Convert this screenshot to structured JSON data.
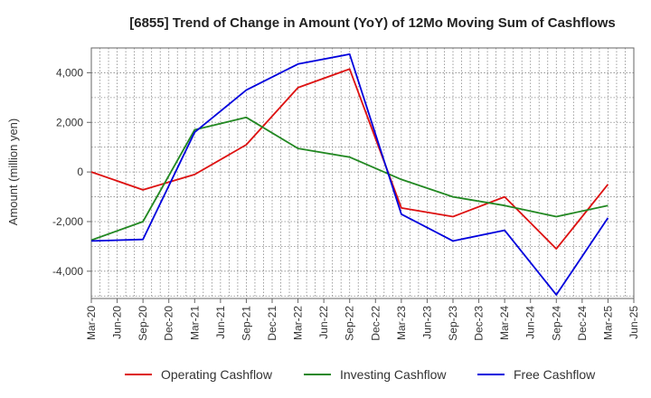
{
  "chart_data": {
    "type": "line",
    "title": "[6855]  Trend of Change in Amount (YoY) of 12Mo Moving Sum of Cashflows",
    "ylabel": "Amount (million yen)",
    "xlabel": "",
    "ylim": [
      -5100,
      5000
    ],
    "yticks": [
      4000,
      2000,
      0,
      -2000,
      -4000
    ],
    "ytick_labels": [
      "4,000",
      "2,000",
      "0",
      "-2,000",
      "-4,000"
    ],
    "categories": [
      "Mar-20",
      "Jun-20",
      "Sep-20",
      "Dec-20",
      "Mar-21",
      "Jun-21",
      "Sep-21",
      "Dec-21",
      "Mar-22",
      "Jun-22",
      "Sep-22",
      "Dec-22",
      "Mar-23",
      "Jun-23",
      "Sep-23",
      "Dec-23",
      "Mar-24",
      "Jun-24",
      "Sep-24",
      "Dec-24",
      "Mar-25",
      "Jun-25"
    ],
    "series": [
      {
        "name": "Operating Cashflow",
        "color": "#dd1111",
        "points": [
          [
            0,
            0
          ],
          [
            2,
            -720
          ],
          [
            4,
            -100
          ],
          [
            6,
            1100
          ],
          [
            8,
            3400
          ],
          [
            10,
            4150
          ],
          [
            12,
            -1450
          ],
          [
            14,
            -1800
          ],
          [
            16,
            -1000
          ],
          [
            18,
            -3100
          ],
          [
            20,
            -500
          ]
        ]
      },
      {
        "name": "Investing Cashflow",
        "color": "#228822",
        "points": [
          [
            0,
            -2750
          ],
          [
            2,
            -2000
          ],
          [
            4,
            1700
          ],
          [
            6,
            2200
          ],
          [
            8,
            950
          ],
          [
            10,
            600
          ],
          [
            12,
            -300
          ],
          [
            14,
            -1000
          ],
          [
            16,
            -1350
          ],
          [
            18,
            -1800
          ],
          [
            20,
            -1350
          ]
        ]
      },
      {
        "name": "Free Cashflow",
        "color": "#0000dd",
        "points": [
          [
            0,
            -2780
          ],
          [
            2,
            -2720
          ],
          [
            4,
            1600
          ],
          [
            6,
            3300
          ],
          [
            8,
            4350
          ],
          [
            10,
            4750
          ],
          [
            12,
            -1700
          ],
          [
            14,
            -2780
          ],
          [
            16,
            -2350
          ],
          [
            18,
            -4950
          ],
          [
            20,
            -1850
          ]
        ]
      }
    ],
    "grid": true,
    "legend": "bottom"
  }
}
